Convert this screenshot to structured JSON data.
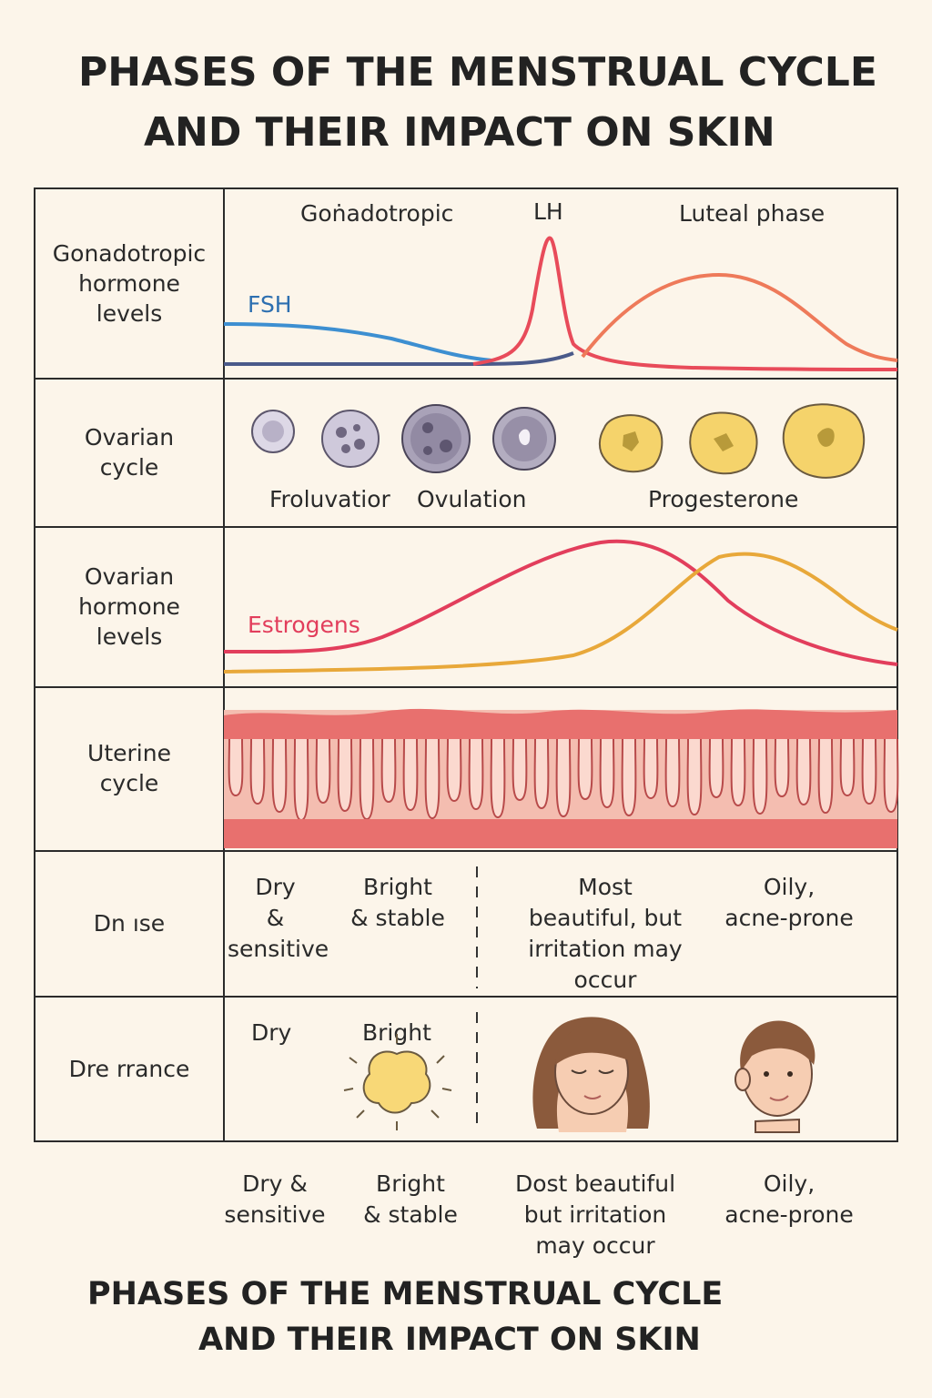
{
  "title_top": [
    "PHASES OF THE MENSTRUAL CYCLE",
    "AND THEIR IMPACT ON SKIN"
  ],
  "title_bottom": [
    "PHASES OF THE MENSTRUAL CYCLE",
    "AND THEIR IMPACT ON SKIN"
  ],
  "rows": {
    "gonadotropic": {
      "label": "Gonadotropic\nhormone\nlevels",
      "header_left": "Goṅadotropic",
      "header_mid": "LH",
      "header_right": "Luteal phase",
      "fsh_label": "FSH"
    },
    "ovarian_cycle": {
      "label": "Ovarian\ncycle",
      "captions": [
        "Froluvatior",
        "Ovulation",
        "Progesterone"
      ]
    },
    "ovarian_hormone": {
      "label": "Ovarian\nhormone\nlevels",
      "estrogen_label": "Estrogens"
    },
    "uterine": {
      "label": "Uterine\ncycle"
    },
    "skin_type": {
      "label": "Dn ıse",
      "cells": [
        "Dry\n&\nsensitive",
        "Bright\n& stable",
        "Most\nbeautiful, but\nirritation may\noccur",
        "Oily,\nacne-prone"
      ]
    },
    "appearance": {
      "label": "Dre rrance",
      "cells": [
        "Dry",
        "Bright"
      ]
    }
  },
  "footer_captions": [
    "Dry &\nsensitive",
    "Bright\n& stable",
    "Dost beautiful\nbut irritation\nmay occur",
    "Oily,\nacne-prone"
  ],
  "colors": {
    "background": "#fcf5ea",
    "fsh": "#3d8fd1",
    "fsh_low": "#4a5a8a",
    "lh": "#e84b5a",
    "progesterone_curve": "#ee7a5a",
    "estrogen": "#e23e5c",
    "progesterone": "#e8a83a",
    "endometrium": "#e8706e",
    "follicle": "#a9a2b8",
    "corpus_luteum": "#f5d36b"
  },
  "icons": [
    "follicle-icon",
    "corpus-luteum-icon",
    "sun-icon",
    "woman-face-icon",
    "boy-face-icon"
  ]
}
